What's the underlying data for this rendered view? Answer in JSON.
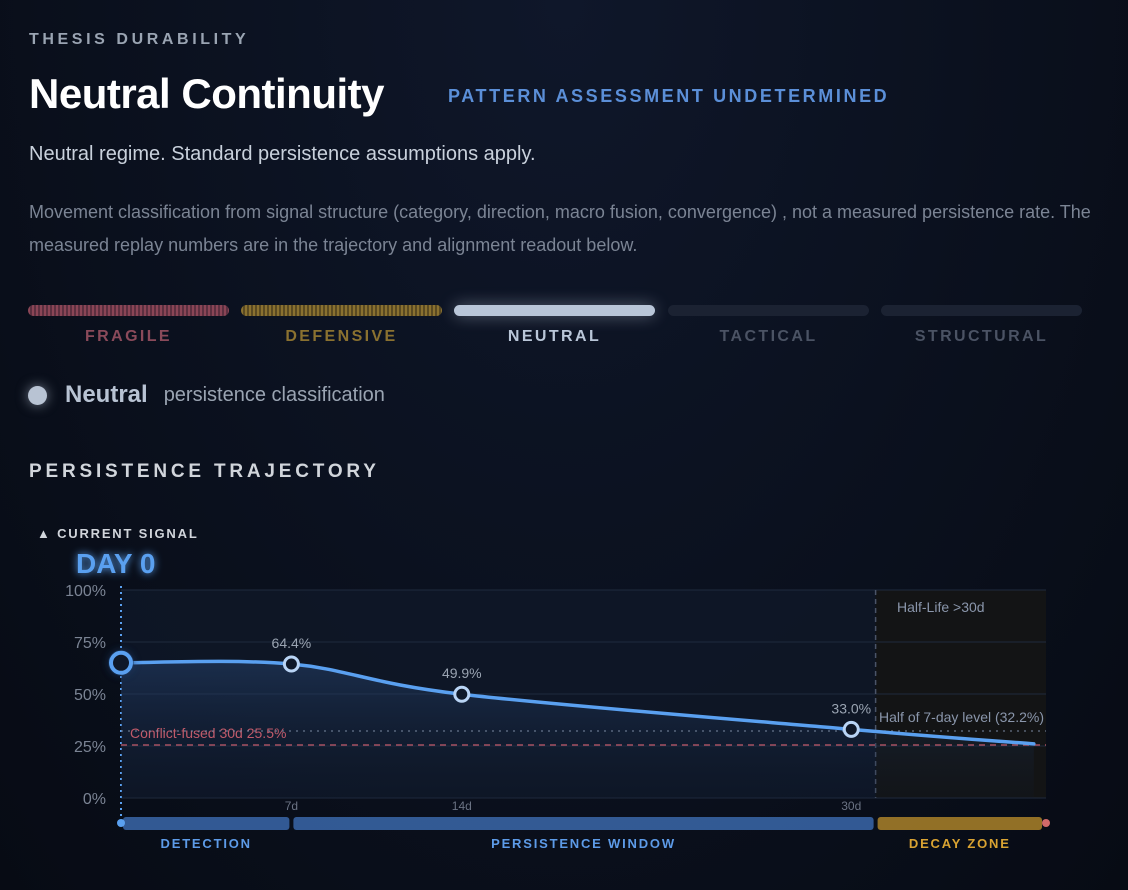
{
  "header": {
    "eyebrow": "THESIS DURABILITY",
    "title": "Neutral Continuity",
    "assessment": "PATTERN ASSESSMENT UNDETERMINED",
    "summary": "Neutral regime. Standard persistence assumptions apply.",
    "note": "Movement classification from signal structure (category, direction, macro fusion, convergence) , not a measured persistence rate. The measured replay numbers are in the trajectory and alignment readout below."
  },
  "scale": {
    "segments": [
      {
        "label": "FRAGILE",
        "color": "#8a4a5a",
        "active": false
      },
      {
        "label": "DEFENSIVE",
        "color": "#8a7130",
        "active": false
      },
      {
        "label": "NEUTRAL",
        "color": "#b9c6d8",
        "active": true
      },
      {
        "label": "TACTICAL",
        "color": "#4b5364",
        "active": false
      },
      {
        "label": "STRUCTURAL",
        "color": "#4b5364",
        "active": false
      }
    ]
  },
  "classification": {
    "name": "Neutral",
    "description": "persistence classification"
  },
  "trajectory": {
    "section_title": "PERSISTENCE TRAJECTORY",
    "current_signal_label": "▲ CURRENT SIGNAL",
    "day_label": "DAY 0",
    "half_life_label": "Half-Life >30d",
    "conflict_label": "Conflict-fused 30d 25.5%",
    "half_level_label": "Half of 7-day level (32.2%)",
    "phases": [
      {
        "label": "DETECTION",
        "color": "#3d6db3",
        "text_color": "#5d9be8"
      },
      {
        "label": "PERSISTENCE WINDOW",
        "color": "#3d6db3",
        "text_color": "#5d9be8"
      },
      {
        "label": "DECAY ZONE",
        "color": "#b58a2a",
        "text_color": "#d9a332"
      }
    ]
  },
  "chart_data": {
    "type": "line",
    "title": "",
    "xlabel": "",
    "ylabel": "",
    "x_ticks": [
      "7d",
      "14d",
      "30d"
    ],
    "y_ticks": [
      "100%",
      "75%",
      "50%",
      "25%",
      "0%"
    ],
    "ylim": [
      0,
      100
    ],
    "xlim": [
      0,
      38
    ],
    "series": [
      {
        "points": [
          {
            "x": 0,
            "y": 65.0,
            "label": ""
          },
          {
            "x": 7,
            "y": 64.4,
            "label": "64.4%"
          },
          {
            "x": 14,
            "y": 49.9,
            "label": "49.9%"
          },
          {
            "x": 30,
            "y": 33.0,
            "label": "33.0%"
          },
          {
            "x": 37.5,
            "y": 26.0,
            "label": ""
          }
        ]
      }
    ],
    "reference_lines": [
      {
        "y": 25.5,
        "label": "Conflict-fused 30d 25.5%",
        "color": "#c05a6a"
      },
      {
        "y": 32.2,
        "label": "Half of 7-day level (32.2%)",
        "color": "#7b8aa3"
      }
    ],
    "half_life_x": 31,
    "current_x": 0,
    "line_color": "#5aa0f0",
    "grid": true
  }
}
